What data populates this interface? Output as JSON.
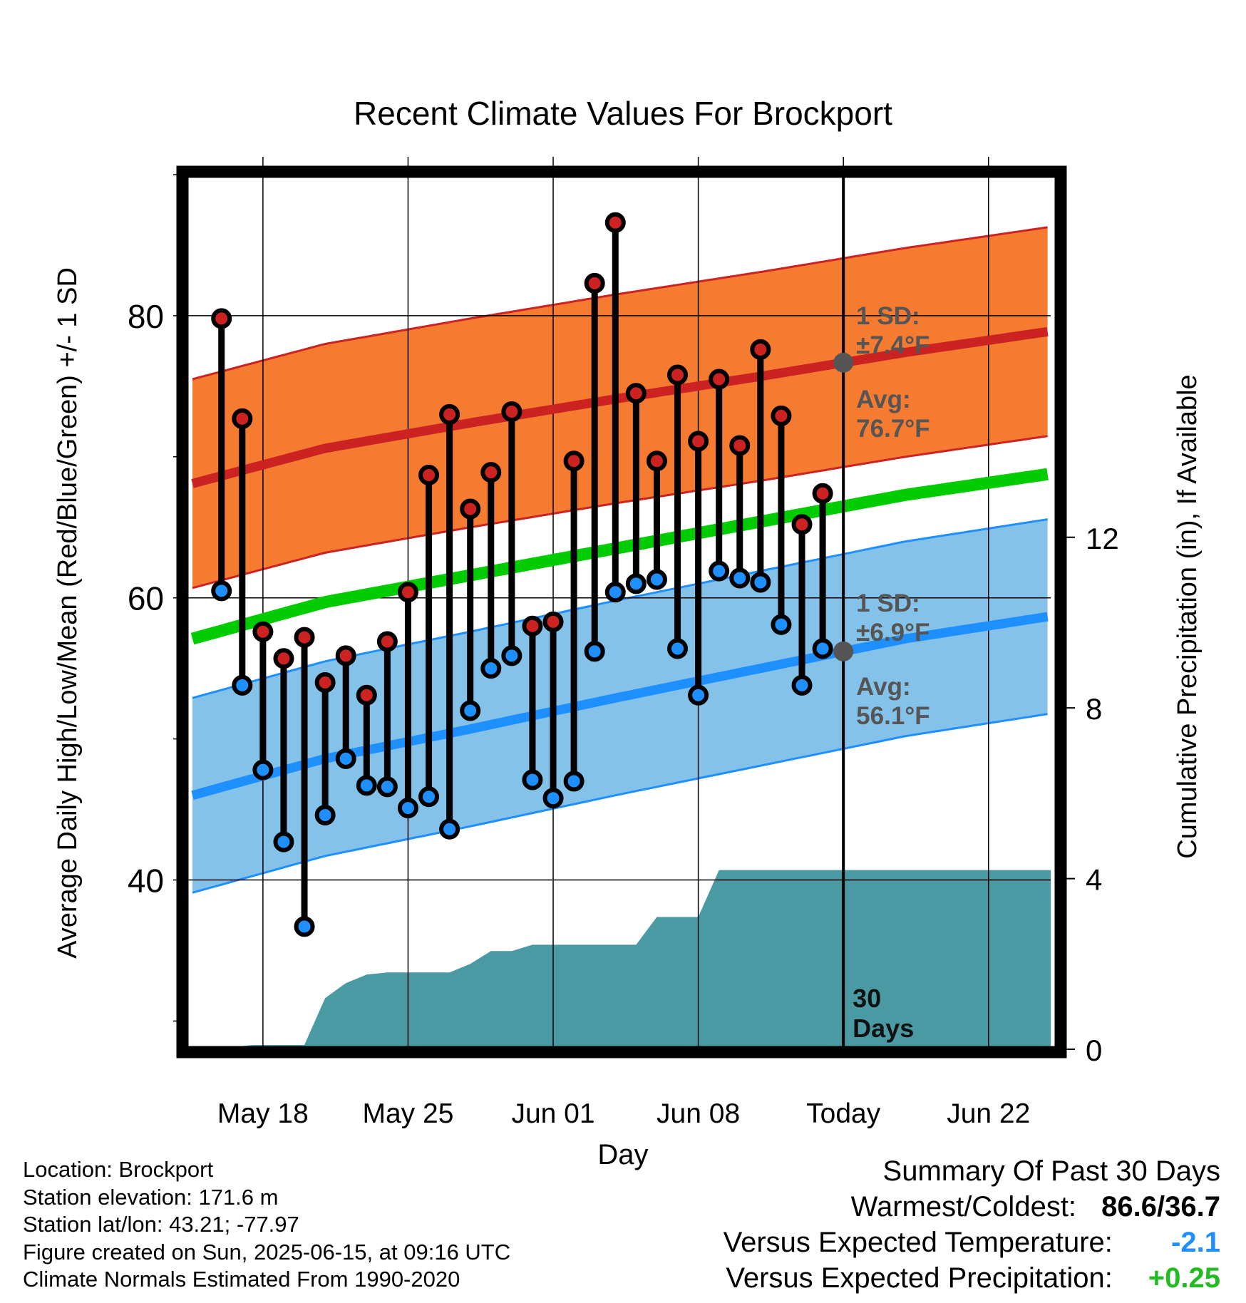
{
  "chart_data": {
    "type": "line",
    "title": "Recent Climate Values For Brockport",
    "xlabel": "Day",
    "ylabel": "Average Daily High/Low/Mean (Red/Blue/Green) +/- 1 SD",
    "y2label": "Cumulative Precipitation (in), If Available",
    "x_tick_labels": [
      "May 18",
      "May 25",
      "Jun 01",
      "Jun 08",
      "Today",
      "Jun 22"
    ],
    "x_tick_dates": [
      "2025-05-18",
      "2025-05-25",
      "2025-06-01",
      "2025-06-08",
      "2025-06-15",
      "2025-06-22"
    ],
    "today": "2025-06-15",
    "xlim": [
      "2025-05-14.6",
      "2025-06-25.0"
    ],
    "ylim": [
      28,
      90
    ],
    "y_ticks": [
      40,
      60,
      80
    ],
    "y2lim": [
      0,
      20.5
    ],
    "y2_ticks": [
      0,
      4,
      8,
      12
    ],
    "grid": true,
    "observed_dates": [
      "2025-05-16",
      "2025-05-17",
      "2025-05-18",
      "2025-05-19",
      "2025-05-20",
      "2025-05-21",
      "2025-05-22",
      "2025-05-23",
      "2025-05-24",
      "2025-05-25",
      "2025-05-26",
      "2025-05-27",
      "2025-05-28",
      "2025-05-29",
      "2025-05-30",
      "2025-05-31",
      "2025-06-01",
      "2025-06-02",
      "2025-06-03",
      "2025-06-04",
      "2025-06-05",
      "2025-06-06",
      "2025-06-07",
      "2025-06-08",
      "2025-06-09",
      "2025-06-10",
      "2025-06-11",
      "2025-06-12",
      "2025-06-13",
      "2025-06-14"
    ],
    "daily_high": [
      79.8,
      72.7,
      57.6,
      55.7,
      57.2,
      54.0,
      55.9,
      53.1,
      56.9,
      60.4,
      68.7,
      73.0,
      66.3,
      68.9,
      73.2,
      58.0,
      58.3,
      69.7,
      82.3,
      86.6,
      74.5,
      69.7,
      75.8,
      71.1,
      75.5,
      70.8,
      77.6,
      72.9,
      65.2,
      67.4
    ],
    "daily_low": [
      60.5,
      53.8,
      47.8,
      42.7,
      36.7,
      44.6,
      48.6,
      46.7,
      46.6,
      45.1,
      45.9,
      43.6,
      52.0,
      55.0,
      55.9,
      47.1,
      45.8,
      47.0,
      56.2,
      60.4,
      61.0,
      61.3,
      56.4,
      53.1,
      61.9,
      61.4,
      61.1,
      58.1,
      53.8,
      56.4
    ],
    "normal_dates": [
      "2025-05-14.6",
      "2025-05-21",
      "2025-05-28",
      "2025-06-04",
      "2025-06-11",
      "2025-06-18",
      "2025-06-25"
    ],
    "series": [
      {
        "name": "High",
        "color": "#cc2222",
        "values": [
          68.1,
          70.6,
          72.4,
          74.1,
          75.7,
          77.4,
          78.9
        ]
      },
      {
        "name": "Low",
        "color": "#1e8fff",
        "values": [
          46.0,
          48.6,
          50.7,
          52.9,
          55.0,
          57.1,
          58.7
        ]
      },
      {
        "name": "Mean",
        "color": "#00cc00",
        "values": [
          57.1,
          59.7,
          61.6,
          63.5,
          65.4,
          67.3,
          68.8
        ]
      }
    ],
    "high_sd": 7.4,
    "low_sd": 6.9,
    "precip_dates": [
      "2025-05-14.6",
      "2025-05-16.0",
      "2025-05-16.5",
      "2025-05-17.5",
      "2025-05-18.5",
      "2025-05-19.5",
      "2025-05-20.0",
      "2025-05-21.0",
      "2025-05-22.0",
      "2025-05-23.0",
      "2025-05-24.0",
      "2025-05-25.0",
      "2025-05-26.0",
      "2025-05-27.0",
      "2025-05-28.0",
      "2025-05-29.0",
      "2025-05-30.0",
      "2025-05-31.0",
      "2025-06-01.0",
      "2025-06-02.0",
      "2025-06-03.0",
      "2025-06-04.0",
      "2025-06-05.0",
      "2025-06-06.0",
      "2025-06-07.0",
      "2025-06-08.0",
      "2025-06-09.0",
      "2025-06-10.0",
      "2025-06-25.0"
    ],
    "precip_cumulative": [
      0,
      0,
      0.05,
      0.1,
      0.1,
      0.1,
      0.1,
      1.2,
      1.55,
      1.75,
      1.8,
      1.8,
      1.8,
      1.8,
      2.0,
      2.3,
      2.3,
      2.45,
      2.45,
      2.45,
      2.45,
      2.45,
      2.45,
      3.1,
      3.1,
      3.1,
      4.2,
      4.2,
      4.2
    ],
    "annotations": {
      "high_sd_label": "1 SD:",
      "high_sd_value": "±7.4°F",
      "high_avg_label": "Avg:",
      "high_avg_value": "76.7°F",
      "low_sd_label": "1 SD:",
      "low_sd_value": "±6.9°F",
      "low_avg_label": "Avg:",
      "low_avg_value": "56.1°F",
      "days_label_1": "30",
      "days_label_2": "Days"
    },
    "colors": {
      "high_band": "#f47b30",
      "low_band": "#84c2e9",
      "precip": "#4a9aa3",
      "high_marker": "#cc2222",
      "low_marker": "#1e8fff"
    }
  },
  "footer": {
    "location": "Location: Brockport",
    "elevation": "Station elevation: 171.6 m",
    "latlon": "Station lat/lon: 43.21; -77.97",
    "created": "Figure created on Sun, 2025-06-15, at 09:16 UTC",
    "normals": "Climate Normals Estimated From 1990-2020"
  },
  "summary": {
    "title": "Summary Of Past 30 Days",
    "warmest_coldest_label": "Warmest/Coldest:",
    "warmest_coldest_value": "86.6/36.7",
    "temp_label": "Versus Expected Temperature:",
    "temp_value": "-2.1",
    "temp_color": "#1e8fff",
    "precip_label": "Versus Expected Precipitation:",
    "precip_value": "+0.25",
    "precip_color": "#22bb22"
  }
}
